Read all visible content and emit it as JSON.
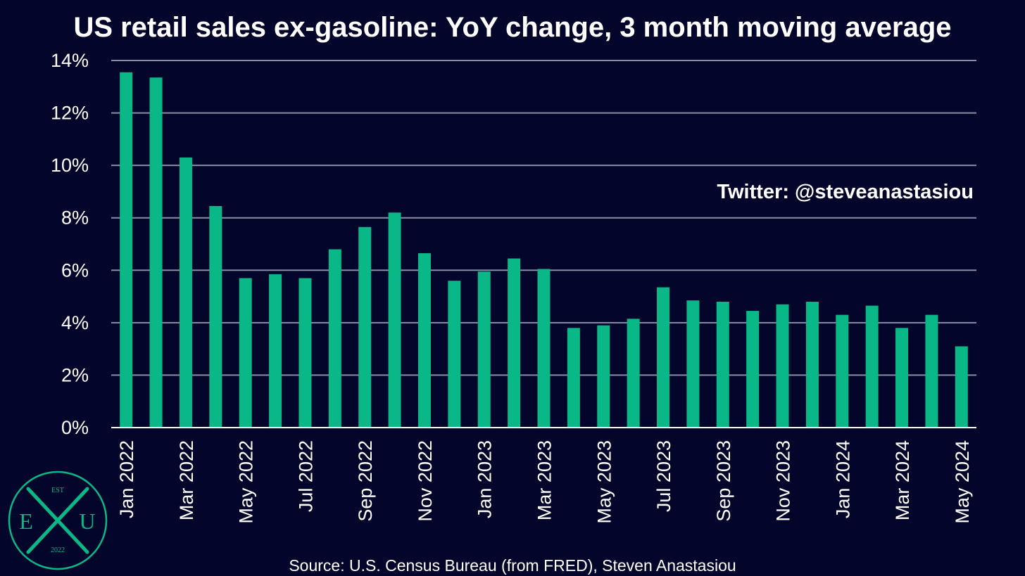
{
  "colors": {
    "background": "#03052a",
    "bar": "#0ab887",
    "grid": "#8a8ea3",
    "text": "#ffffff",
    "logo": "#0ab887"
  },
  "watermark": "Twitter: @steveanastasiou",
  "source": "Source: U.S. Census Bureau (from FRED), Steven Anastasiou",
  "logo": {
    "top": "EST",
    "left": "E",
    "right": "U",
    "bottom": "2022"
  },
  "chart_data": {
    "type": "bar",
    "title": "US retail sales ex-gasoline: YoY change, 3 month moving average",
    "xlabel": "",
    "ylabel": "",
    "ylim": [
      0,
      14
    ],
    "yticks": [
      "0%",
      "2%",
      "4%",
      "6%",
      "8%",
      "10%",
      "12%",
      "14%"
    ],
    "grid": true,
    "categories": [
      "Jan 2022",
      "Feb 2022",
      "Mar 2022",
      "Apr 2022",
      "May 2022",
      "Jun 2022",
      "Jul 2022",
      "Aug 2022",
      "Sep 2022",
      "Oct 2022",
      "Nov 2022",
      "Dec 2022",
      "Jan 2023",
      "Feb 2023",
      "Mar 2023",
      "Apr 2023",
      "May 2023",
      "Jun 2023",
      "Jul 2023",
      "Aug 2023",
      "Sep 2023",
      "Oct 2023",
      "Nov 2023",
      "Dec 2023",
      "Jan 2024",
      "Feb 2024",
      "Mar 2024",
      "Apr 2024",
      "May 2024"
    ],
    "shown_tick_labels": [
      "Jan 2022",
      "",
      "Mar 2022",
      "",
      "May 2022",
      "",
      "Jul 2022",
      "",
      "Sep 2022",
      "",
      "Nov 2022",
      "",
      "Jan 2023",
      "",
      "Mar 2023",
      "",
      "May 2023",
      "",
      "Jul 2023",
      "",
      "Sep 2023",
      "",
      "Nov 2023",
      "",
      "Jan 2024",
      "",
      "Mar 2024",
      "",
      "May 2024"
    ],
    "values": [
      13.55,
      13.35,
      10.3,
      8.45,
      5.7,
      5.85,
      5.7,
      6.8,
      7.65,
      8.2,
      6.65,
      5.6,
      5.95,
      6.45,
      6.05,
      3.8,
      3.9,
      4.15,
      5.35,
      4.85,
      4.8,
      4.45,
      4.7,
      4.8,
      4.3,
      4.65,
      3.8,
      4.3,
      3.1
    ]
  }
}
